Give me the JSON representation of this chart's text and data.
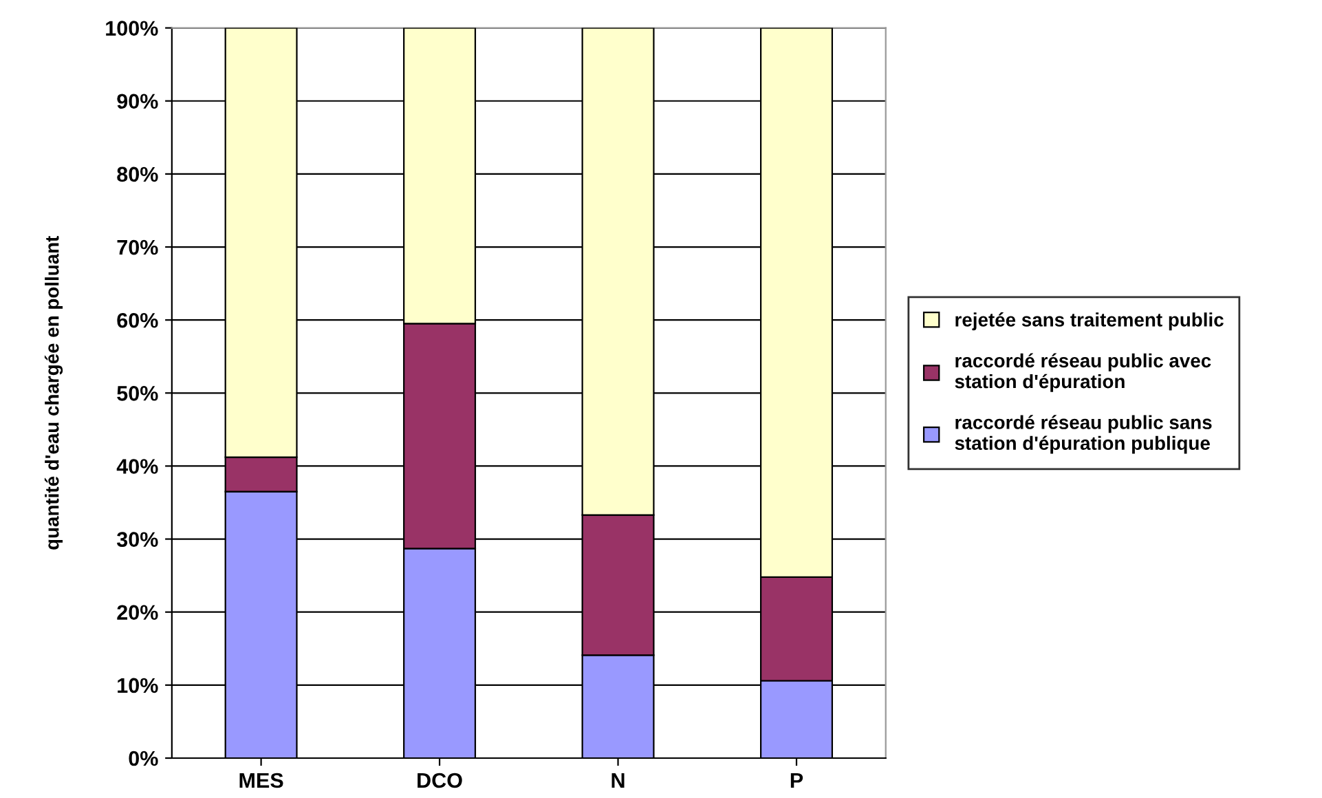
{
  "chart_data": {
    "type": "bar",
    "stacked": true,
    "ylabel": "quantité d'eau chargée en polluant",
    "categories": [
      "MES",
      "DCO",
      "N",
      "P"
    ],
    "series": [
      {
        "name": "raccordé réseau public sans station d'épuration publique",
        "color": "#9999ff",
        "values": [
          36.5,
          28.7,
          14.1,
          10.6
        ]
      },
      {
        "name": "raccordé réseau public avec station d'épuration",
        "color": "#993366",
        "values": [
          4.7,
          30.8,
          19.2,
          14.2
        ]
      },
      {
        "name": "rejetée sans traitement public",
        "color": "#ffffcc",
        "values": [
          58.8,
          40.5,
          66.7,
          75.2
        ]
      }
    ],
    "ylim": [
      0,
      100
    ],
    "yticks": [
      {
        "value": 0,
        "label": "0%"
      },
      {
        "value": 10,
        "label": "10%"
      },
      {
        "value": 20,
        "label": "20%"
      },
      {
        "value": 30,
        "label": "30%"
      },
      {
        "value": 40,
        "label": "40%"
      },
      {
        "value": 50,
        "label": "50%"
      },
      {
        "value": 60,
        "label": "60%"
      },
      {
        "value": 70,
        "label": "70%"
      },
      {
        "value": 80,
        "label": "80%"
      },
      {
        "value": 90,
        "label": "90%"
      },
      {
        "value": 100,
        "label": "100%"
      }
    ],
    "grid": "y",
    "legend": "right"
  }
}
